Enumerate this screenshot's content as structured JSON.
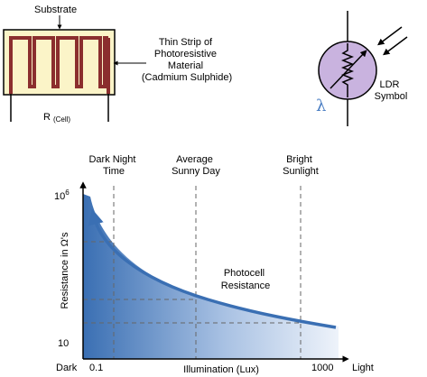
{
  "cell": {
    "substrate_label": "Substrate",
    "strip_label": [
      "Thin Strip of",
      "Photoresistive",
      "Material",
      "(Cadmium Sulphide)"
    ],
    "resistance_label": "R",
    "resistance_sub": "(Cell)"
  },
  "symbol": {
    "lambda": "λ",
    "label": [
      "LDR",
      "Symbol"
    ]
  },
  "chart": {
    "annotations": [
      {
        "lines": [
          "Dark Night",
          "Time"
        ]
      },
      {
        "lines": [
          "Average",
          "Sunny Day"
        ]
      },
      {
        "lines": [
          "Bright",
          "Sunlight"
        ]
      }
    ],
    "curve_label": [
      "Photocell",
      "Resistance"
    ],
    "ylabel": "Resistance in Ω's",
    "xlabel": "Illumination (Lux)",
    "y_top_tick": "10",
    "y_top_exp": "6",
    "y_bottom_tick": "10",
    "x_left_word": "Dark",
    "x_right_word": "Light",
    "x_tick_left": "0.1",
    "x_tick_right": "1000"
  },
  "colors": {
    "substrate_fill": "#fbf4c8",
    "strip": "#8b2e2e",
    "symbol_fill": "#c9b3df",
    "curve": "#3a6fb3"
  },
  "chart_data": {
    "type": "line",
    "xlabel": "Illumination (Lux)",
    "ylabel": "Resistance in Ω's",
    "x_ticks": [
      "0.1",
      "1000"
    ],
    "y_ticks": [
      "10^6",
      "10"
    ],
    "series": [
      {
        "name": "Photocell Resistance",
        "x": [
          "0.1",
          "1000"
        ],
        "y": [
          "10^6",
          "10"
        ],
        "shape": "decreasing"
      }
    ]
  }
}
